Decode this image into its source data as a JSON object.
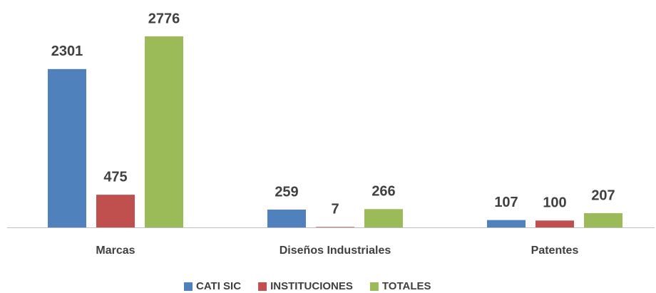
{
  "chart_data": {
    "type": "bar",
    "categories": [
      "Marcas",
      "Diseños Industriales",
      "Patentes"
    ],
    "series": [
      {
        "name": "CATI SIC",
        "color": "#4f81bd",
        "values": [
          2301,
          259,
          107
        ]
      },
      {
        "name": "INSTITUCIONES",
        "color": "#c0504d",
        "values": [
          475,
          7,
          100
        ]
      },
      {
        "name": "TOTALES",
        "color": "#9bbb59",
        "values": [
          2776,
          266,
          207
        ]
      }
    ],
    "legend": "bottom"
  }
}
